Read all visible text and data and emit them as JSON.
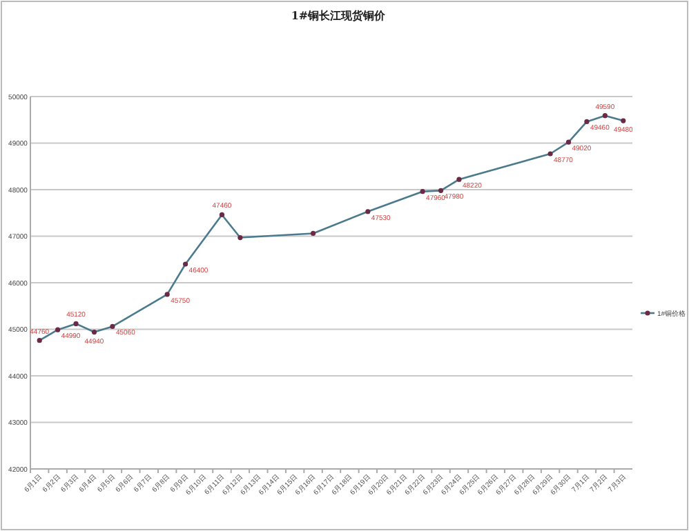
{
  "chart_data": {
    "type": "line",
    "title": "1#铜长江现货铜价",
    "categories": [
      "6月1日",
      "6月2日",
      "6月3日",
      "6月4日",
      "6月5日",
      "6月6日",
      "6月7日",
      "6月8日",
      "6月9日",
      "6月10日",
      "6月11日",
      "6月12日",
      "6月13日",
      "6月14日",
      "6月15日",
      "6月16日",
      "6月17日",
      "6月18日",
      "6月19日",
      "6月20日",
      "6月21日",
      "6月22日",
      "6月23日",
      "6月24日",
      "6月25日",
      "6月26日",
      "6月27日",
      "6月28日",
      "6月29日",
      "6月30日",
      "7月1日",
      "7月2日",
      "7月3日"
    ],
    "series": [
      {
        "name": "1#铜价格",
        "color": "#4a7a8c",
        "values": [
          44760,
          44990,
          45120,
          44940,
          45060,
          null,
          null,
          45750,
          46400,
          null,
          47460,
          46970,
          null,
          null,
          null,
          47060,
          null,
          null,
          47530,
          null,
          null,
          47960,
          47980,
          48220,
          null,
          null,
          null,
          null,
          48770,
          49020,
          49460,
          49590,
          49480
        ],
        "value_labels": [
          "44760",
          "44990",
          "45120",
          "44940",
          "45060",
          null,
          null,
          "45750",
          "46400",
          null,
          "47460",
          null,
          null,
          null,
          null,
          null,
          null,
          null,
          "47530",
          null,
          null,
          "47960",
          "47980",
          "48220",
          null,
          null,
          null,
          null,
          "48770",
          "49020",
          "49460",
          "49590",
          "49480"
        ]
      }
    ],
    "ylim": [
      42000,
      50000
    ],
    "yticks": [
      42000,
      43000,
      44000,
      45000,
      46000,
      47000,
      48000,
      49000,
      50000
    ],
    "grid": "y",
    "legend": "right",
    "marker": "circle",
    "line_style": "solid"
  }
}
